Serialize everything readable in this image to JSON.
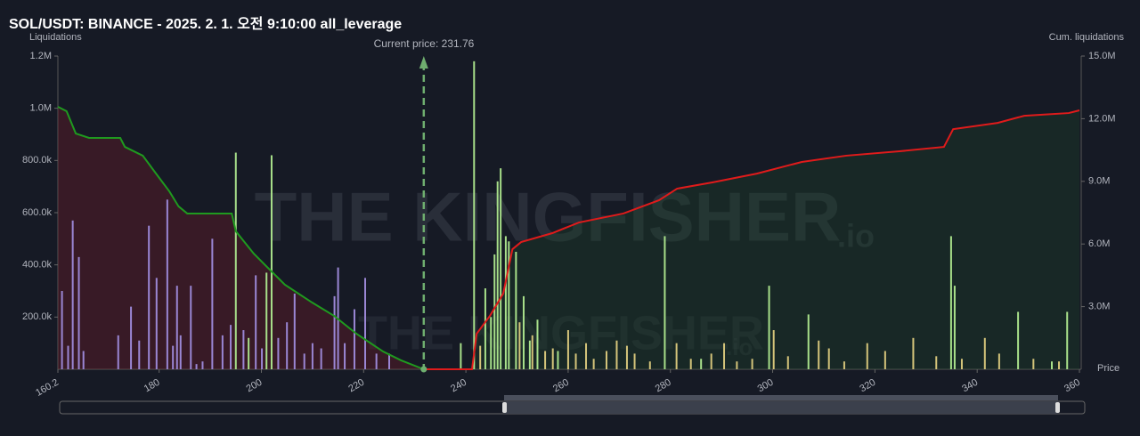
{
  "chart_data": {
    "type": "bar_cumulative",
    "title": "SOL/USDT: BINANCE - 2025. 2. 1. 오전 9:10:00 all_leverage",
    "ylabel": "Liquidations",
    "y2label": "Cum. liquidations",
    "xlabel": "Price",
    "current_price_label": "Current price: 231.76",
    "current_price": 231.76,
    "watermark": "THE KINGFISHER",
    "watermark_suffix": ".io",
    "xlim": [
      160.2,
      360
    ],
    "xticks": [
      160.2,
      180,
      200,
      220,
      240,
      260,
      280,
      300,
      320,
      340,
      360
    ],
    "ylim": [
      0,
      1200000
    ],
    "yticks": [
      {
        "value": 200000,
        "label": "200.0k"
      },
      {
        "value": 400000,
        "label": "400.0k"
      },
      {
        "value": 600000,
        "label": "600.0k"
      },
      {
        "value": 800000,
        "label": "800.0k"
      },
      {
        "value": 1000000,
        "label": "1.0M"
      },
      {
        "value": 1200000,
        "label": "1.2M"
      }
    ],
    "y2lim": [
      0,
      15000000
    ],
    "y2ticks": [
      {
        "value": 3000000,
        "label": "3.0M"
      },
      {
        "value": 6000000,
        "label": "6.0M"
      },
      {
        "value": 9000000,
        "label": "9.0M"
      },
      {
        "value": 12000000,
        "label": "12.0M"
      },
      {
        "value": 15000000,
        "label": "15.0M"
      }
    ],
    "bars": [
      {
        "color": "#9a86d4",
        "x": [
          161,
          162.2,
          163.1,
          164.3,
          165.2,
          172,
          174.5,
          176.1,
          178,
          179.5,
          181.6,
          182.7,
          183.5,
          184.2,
          186.2,
          187.3,
          188.5,
          190.4,
          192.4,
          194,
          196.5,
          198.9,
          200.1,
          203.3,
          205,
          206.5,
          208.4,
          210,
          211.7,
          214.3,
          215,
          216.3,
          218.2,
          220.3,
          222.5,
          225
        ],
        "values": [
          300000,
          90000,
          570000,
          430000,
          70000,
          130000,
          240000,
          110000,
          550000,
          350000,
          650000,
          90000,
          320000,
          130000,
          320000,
          20000,
          30000,
          500000,
          130000,
          170000,
          150000,
          360000,
          80000,
          120000,
          180000,
          290000,
          60000,
          100000,
          80000,
          280000,
          390000,
          100000,
          230000,
          350000,
          60000,
          60000
        ]
      },
      {
        "color": "#a8e08a",
        "x": [
          195,
          197.5,
          201,
          202,
          239,
          241.6,
          243.8,
          244.9,
          245.6,
          246.2,
          246.8,
          247.8,
          248.4,
          249.8,
          251.3,
          252.5,
          254,
          258,
          278.9,
          286,
          299.3,
          307,
          334.9,
          335.6,
          348,
          354.6,
          357.6
        ],
        "values": [
          830000,
          120000,
          370000,
          820000,
          100000,
          1180000,
          310000,
          200000,
          440000,
          720000,
          770000,
          510000,
          490000,
          450000,
          280000,
          110000,
          190000,
          70000,
          510000,
          40000,
          320000,
          210000,
          510000,
          320000,
          220000,
          30000,
          220000
        ]
      },
      {
        "color": "#d4c47a",
        "x": [
          242.8,
          250.5,
          253,
          255.5,
          257,
          260,
          261.5,
          263.5,
          265,
          267.5,
          269.5,
          271.5,
          273,
          276,
          281.2,
          284,
          288,
          290.5,
          293,
          296,
          300.2,
          303,
          309,
          311,
          314,
          318.5,
          322,
          327.5,
          332,
          337,
          341.5,
          344.3,
          351,
          356
        ],
        "values": [
          90000,
          180000,
          130000,
          70000,
          80000,
          150000,
          60000,
          100000,
          40000,
          70000,
          110000,
          90000,
          60000,
          30000,
          100000,
          40000,
          60000,
          100000,
          30000,
          40000,
          150000,
          50000,
          110000,
          80000,
          30000,
          100000,
          70000,
          120000,
          50000,
          40000,
          120000,
          60000,
          40000,
          30000
        ]
      }
    ],
    "series": [
      {
        "color": "#1f9a1f",
        "fill": "rgba(120,30,40,0.35)",
        "axis": "y2",
        "x": [
          160.2,
          161.9,
          163.7,
          166.3,
          172.4,
          173.3,
          176.8,
          179.4,
          182.0,
          183.8,
          185.5,
          194.2,
          195.0,
          198.5,
          201.1,
          204.6,
          209.9,
          214.2,
          218.6,
          223.8,
          227.3,
          231.76
        ],
        "values": [
          12570000,
          12360000,
          11290000,
          11080000,
          11080000,
          10650000,
          10230000,
          9370000,
          8520000,
          7800000,
          7460000,
          7460000,
          6610000,
          5540000,
          4900000,
          4050000,
          3200000,
          2560000,
          1700000,
          850000,
          430000,
          0
        ]
      },
      {
        "color": "#e01b1b",
        "fill": "rgba(30,70,40,0.35)",
        "axis": "y2",
        "x": [
          231.76,
          241.2,
          242.1,
          244.7,
          247.3,
          249.1,
          250.8,
          256.9,
          262.1,
          270.8,
          277.8,
          281.3,
          288.2,
          296.9,
          305.7,
          314.4,
          324.8,
          333.5,
          335.3,
          344.0,
          349.2,
          357.9,
          360
        ],
        "values": [
          0,
          0,
          1700000,
          2560000,
          3620000,
          5750000,
          6090000,
          6520000,
          7030000,
          7460000,
          8100000,
          8650000,
          8950000,
          9370000,
          9930000,
          10230000,
          10440000,
          10650000,
          11500000,
          11800000,
          12140000,
          12270000,
          12400000
        ]
      }
    ]
  }
}
